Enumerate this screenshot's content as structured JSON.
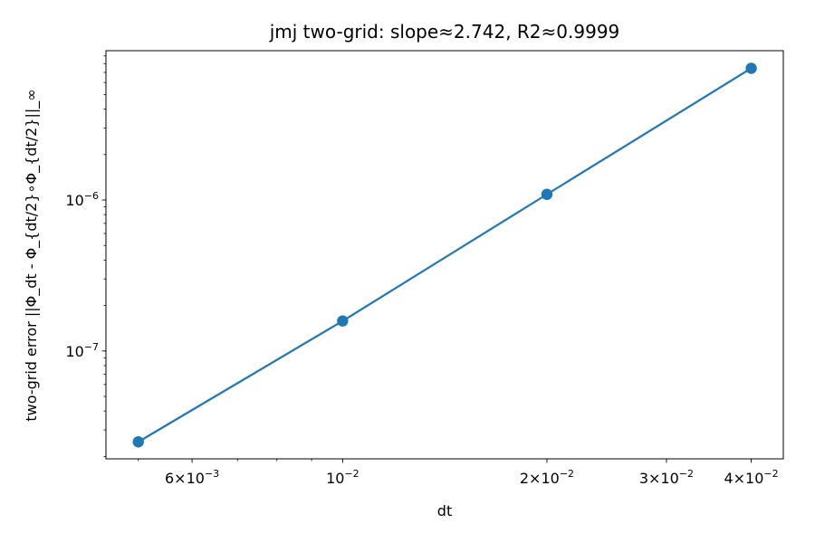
{
  "chart_data": {
    "type": "line",
    "title": "jmj two-grid: slope≈2.742, R2≈0.9999",
    "xlabel": "dt",
    "ylabel": "two-grid error ||Φ_dt - Φ_{dt/2}∘Φ_{dt/2}||_∞",
    "xscale": "log",
    "yscale": "log",
    "xlim": [
      0.00448,
      0.0446
    ],
    "ylim": [
      1.93e-08,
      9.75e-06
    ],
    "grid": false,
    "x": [
      0.005,
      0.01,
      0.02,
      0.04
    ],
    "series": [
      {
        "values": [
          2.5e-08,
          1.58e-07,
          1.09e-06,
          7.45e-06
        ],
        "color": "#1f77b4"
      }
    ],
    "x_ticks": [
      {
        "value": 0.006,
        "mantissa": "6",
        "exponent": "−3"
      },
      {
        "value": 0.01,
        "mantissa": "",
        "exponent": "−2"
      },
      {
        "value": 0.02,
        "mantissa": "2",
        "exponent": "−2"
      },
      {
        "value": 0.03,
        "mantissa": "3",
        "exponent": "−2"
      },
      {
        "value": 0.04,
        "mantissa": "4",
        "exponent": "−2"
      }
    ],
    "y_ticks": [
      {
        "value": 1e-07,
        "exponent": "−7"
      },
      {
        "value": 1e-06,
        "exponent": "−6"
      }
    ]
  }
}
